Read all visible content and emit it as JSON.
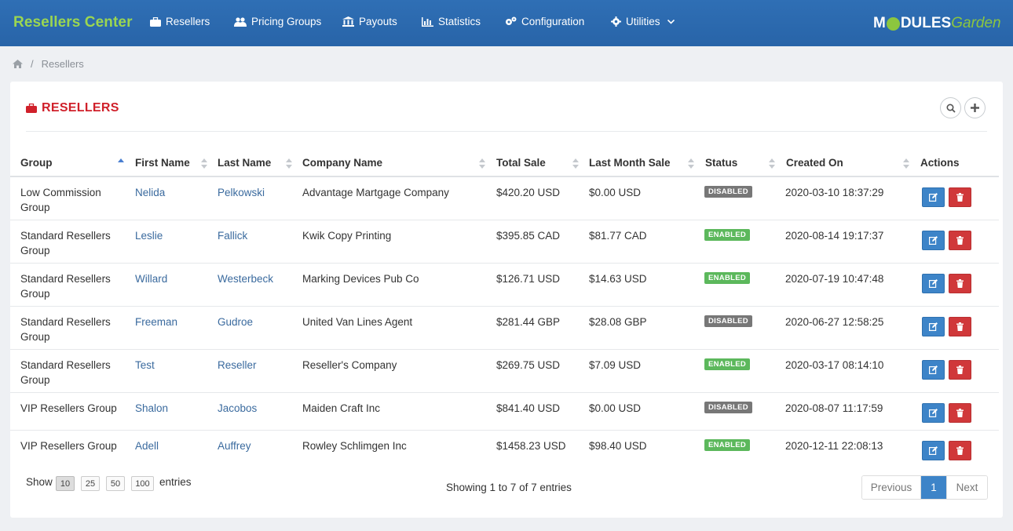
{
  "app": {
    "brand": "Resellers Center",
    "logo_prefix": "M",
    "logo_mid": "DULES",
    "logo_suffix": "Garden"
  },
  "nav": [
    {
      "label": "Resellers",
      "icon": "briefcase-icon"
    },
    {
      "label": "Pricing Groups",
      "icon": "users-icon"
    },
    {
      "label": "Payouts",
      "icon": "bank-icon"
    },
    {
      "label": "Statistics",
      "icon": "bar-chart-icon"
    },
    {
      "label": "Configuration",
      "icon": "cogs-icon"
    },
    {
      "label": "Utilities",
      "icon": "gear-icon",
      "has_dropdown": true
    }
  ],
  "breadcrumb": {
    "home_icon": "home-icon",
    "current": "Resellers"
  },
  "panel": {
    "title": "RESELLERS",
    "title_icon": "briefcase-icon",
    "actions": [
      {
        "icon": "search-icon"
      },
      {
        "icon": "plus-icon"
      }
    ]
  },
  "table": {
    "columns": [
      "Group",
      "First Name",
      "Last Name",
      "Company Name",
      "Total Sale",
      "Last Month Sale",
      "Status",
      "Created On",
      "Actions"
    ],
    "sorted_column": "Group",
    "sort_direction": "asc",
    "rows": [
      {
        "group": "Low Commission Group",
        "first": "Nelida",
        "last": "Pelkowski",
        "company": "Advantage Martgage Company",
        "total": "$420.20 USD",
        "last_month": "$0.00 USD",
        "status": "DISABLED",
        "created": "2020-03-10 18:37:29"
      },
      {
        "group": "Standard Resellers Group",
        "first": "Leslie",
        "last": "Fallick",
        "company": "Kwik Copy Printing",
        "total": "$395.85 CAD",
        "last_month": "$81.77 CAD",
        "status": "ENABLED",
        "created": "2020-08-14 19:17:37"
      },
      {
        "group": "Standard Resellers Group",
        "first": "Willard",
        "last": "Westerbeck",
        "company": "Marking Devices Pub Co",
        "total": "$126.71 USD",
        "last_month": "$14.63 USD",
        "status": "ENABLED",
        "created": "2020-07-19 10:47:48"
      },
      {
        "group": "Standard Resellers Group",
        "first": "Freeman",
        "last": "Gudroe",
        "company": "United Van Lines Agent",
        "total": "$281.44 GBP",
        "last_month": "$28.08 GBP",
        "status": "DISABLED",
        "created": "2020-06-27 12:58:25"
      },
      {
        "group": "Standard Resellers Group",
        "first": "Test",
        "last": "Reseller",
        "company": "Reseller's Company",
        "total": "$269.75 USD",
        "last_month": "$7.09 USD",
        "status": "ENABLED",
        "created": "2020-03-17 08:14:10"
      },
      {
        "group": "VIP Resellers Group",
        "first": "Shalon",
        "last": "Jacobos",
        "company": "Maiden Craft Inc",
        "total": "$841.40 USD",
        "last_month": "$0.00 USD",
        "status": "DISABLED",
        "created": "2020-08-07 11:17:59"
      },
      {
        "group": "VIP Resellers Group",
        "first": "Adell",
        "last": "Auffrey",
        "company": "Rowley Schlimgen Inc",
        "total": "$1458.23 USD",
        "last_month": "$98.40 USD",
        "status": "ENABLED",
        "created": "2020-12-11 22:08:13"
      }
    ],
    "row_action_icons": [
      "edit-icon",
      "trash-icon"
    ]
  },
  "footer": {
    "show_label": "Show",
    "page_sizes": [
      "10",
      "25",
      "50",
      "100"
    ],
    "selected_page_size": "10",
    "entries_label": "entries",
    "info": "Showing 1 to 7 of 7 entries",
    "pager": {
      "prev": "Previous",
      "current": "1",
      "next": "Next"
    }
  },
  "colors": {
    "navbar": "#2b6cb0",
    "brand": "#9bd651",
    "title": "#d0202a",
    "enabled": "#5cb85c",
    "disabled": "#777777",
    "edit": "#3d84c8",
    "delete": "#d0383a"
  }
}
